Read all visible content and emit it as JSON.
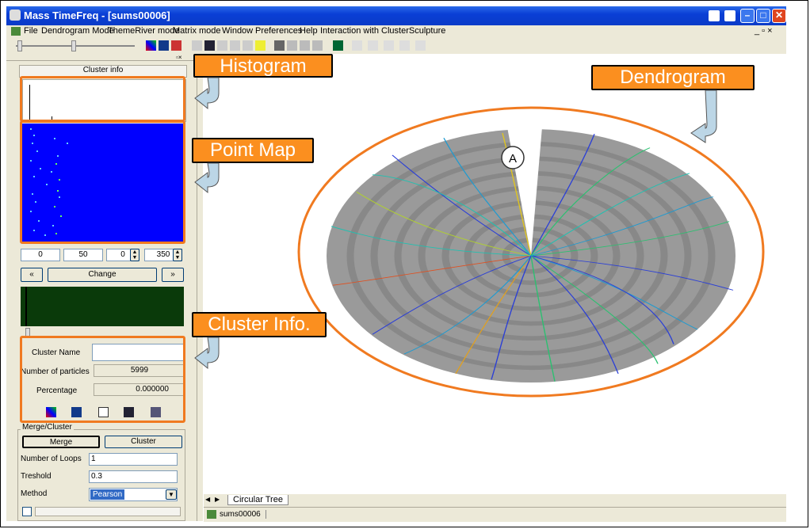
{
  "window": {
    "title": "Mass TimeFreq - [sums00006]"
  },
  "menu": {
    "items": [
      "File",
      "Dendrogram Mode",
      "ThemeRiver mode",
      "Matrix mode",
      "Window",
      "Preferences",
      "Help",
      "Interaction with ClusterSculpture"
    ]
  },
  "left_panel": {
    "header": "Cluster info",
    "range": {
      "v1": "0",
      "v2": "50",
      "v3": "0",
      "v4": "350"
    },
    "nav": {
      "prev": "«",
      "change": "Change",
      "next": "»"
    },
    "cluster_info": {
      "name_label": "Cluster Name",
      "name_value": "",
      "particles_label": "Number of particles",
      "particles_value": "5999",
      "percentage_label": "Percentage",
      "percentage_value": "0.000000"
    },
    "merge": {
      "group_label": "Merge/Cluster",
      "merge_btn": "Merge",
      "cluster_btn": "Cluster",
      "loops_label": "Number of Loops",
      "loops_value": "1",
      "threshold_label": "Treshold",
      "threshold_value": "0.3",
      "method_label": "Method",
      "method_value": "Pearson"
    }
  },
  "tabs": {
    "active": "Circular Tree"
  },
  "status": {
    "doc": "sums00006"
  },
  "annotations": {
    "histogram": "Histogram",
    "point_map": "Point Map",
    "cluster_info": "Cluster Info.",
    "dendrogram": "Dendrogram",
    "marker": "A"
  },
  "colors": {
    "callout": "#fb8f1f",
    "highlight": "#f07a20",
    "point_map_bg": "#0000ff",
    "histogram2_bg": "#0a3a0a",
    "title_bar": "#0a3fd6"
  }
}
